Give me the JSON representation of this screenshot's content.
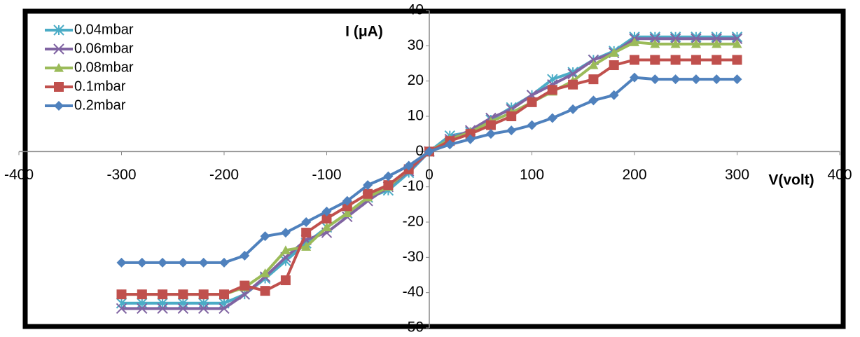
{
  "chart_data": {
    "type": "line",
    "x_label": "V(volt)",
    "y_label": "I (μA)",
    "x": [
      -300,
      -280,
      -260,
      -240,
      -220,
      -200,
      -180,
      -160,
      -140,
      -120,
      -100,
      -80,
      -60,
      -40,
      -20,
      0,
      20,
      40,
      60,
      80,
      100,
      120,
      140,
      160,
      180,
      200,
      220,
      240,
      260,
      280,
      300
    ],
    "xlim": [
      -400,
      400
    ],
    "xticks": [
      -400,
      -300,
      -200,
      -100,
      0,
      100,
      200,
      300,
      400
    ],
    "ylim": [
      -50,
      40
    ],
    "yticks": [
      -50,
      -40,
      -30,
      -20,
      -10,
      0,
      10,
      20,
      30,
      40
    ],
    "series": [
      {
        "name": "0.04mbar",
        "color": "#4bacc6",
        "marker": "star",
        "values": [
          -43,
          -43,
          -43,
          -43,
          -43,
          -43,
          -40.5,
          -36,
          -31,
          -26,
          -21.5,
          -17.5,
          -13,
          -11,
          -6,
          0,
          4.5,
          5.5,
          9,
          12.5,
          16,
          20.5,
          22.5,
          26,
          28.5,
          32.5,
          32.5,
          32.5,
          32.5,
          32.5,
          32.5
        ]
      },
      {
        "name": "0.06mbar",
        "color": "#8064a2",
        "marker": "x",
        "values": [
          -44.5,
          -44.5,
          -44.5,
          -44.5,
          -44.5,
          -44.5,
          -40.5,
          -35.5,
          -30,
          -25,
          -23,
          -18.5,
          -14,
          -10,
          -5.5,
          0,
          3.5,
          6,
          9.5,
          12,
          16,
          19,
          22,
          26,
          28,
          32,
          32,
          32,
          32,
          32,
          32
        ]
      },
      {
        "name": "0.08mbar",
        "color": "#9bbb59",
        "marker": "triangle",
        "values": [
          -40.5,
          -40.5,
          -40.5,
          -40.5,
          -40.5,
          -40.5,
          -38.5,
          -34.5,
          -28,
          -27,
          -21.5,
          -17.5,
          -13,
          -10,
          -5,
          0,
          3.5,
          5.5,
          8.5,
          11,
          14,
          17,
          20,
          24.5,
          28,
          31,
          30.5,
          30.5,
          30.5,
          30.5,
          30.5
        ]
      },
      {
        "name": "0.1mbar",
        "color": "#c0504d",
        "marker": "square",
        "values": [
          -40.5,
          -40.5,
          -40.5,
          -40.5,
          -40.5,
          -40.5,
          -38,
          -39.5,
          -36.5,
          -23,
          -19,
          -15.5,
          -12,
          -9.5,
          -5,
          0,
          3,
          5,
          7.5,
          10,
          14,
          17.5,
          19,
          20.5,
          24.5,
          26,
          26,
          26,
          26,
          26,
          26
        ]
      },
      {
        "name": "0.2mbar",
        "color": "#4f81bd",
        "marker": "diamond",
        "values": [
          -31.5,
          -31.5,
          -31.5,
          -31.5,
          -31.5,
          -31.5,
          -29.5,
          -24,
          -23,
          -20,
          -17,
          -14,
          -9.5,
          -7,
          -4,
          0,
          2,
          3.5,
          5,
          6,
          7.5,
          9.5,
          12,
          14.5,
          16,
          21,
          20.5,
          20.5,
          20.5,
          20.5,
          20.5
        ]
      }
    ]
  }
}
